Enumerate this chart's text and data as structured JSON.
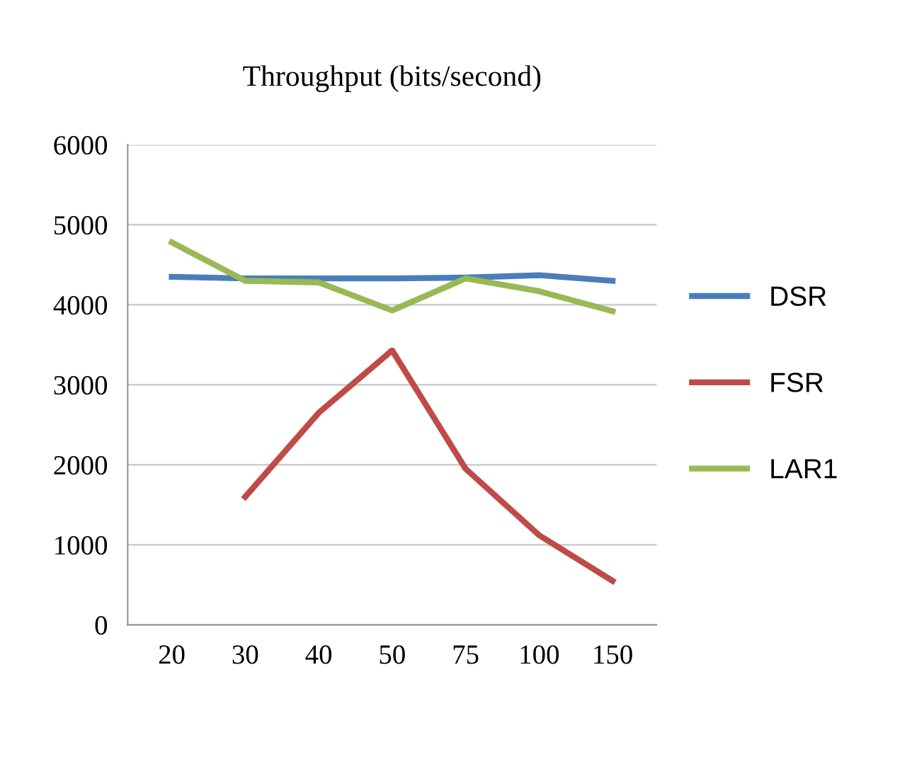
{
  "chart_data": {
    "type": "line",
    "title": "Throughput (bits/second)",
    "categories": [
      "20",
      "30",
      "40",
      "50",
      "75",
      "100",
      "150"
    ],
    "series": [
      {
        "name": "DSR",
        "color": "#4a7ebb",
        "values": [
          4350,
          4330,
          4330,
          4330,
          4340,
          4370,
          4300
        ]
      },
      {
        "name": "FSR",
        "color": "#be4b48",
        "values": [
          null,
          1600,
          2650,
          3430,
          1950,
          1120,
          550
        ]
      },
      {
        "name": "LAR1",
        "color": "#98b954",
        "values": [
          4780,
          4300,
          4280,
          3930,
          4330,
          4170,
          3920
        ]
      }
    ],
    "ylim": [
      0,
      6000
    ],
    "yticks": [
      0,
      1000,
      2000,
      3000,
      4000,
      5000,
      6000
    ],
    "grid": "y",
    "legend": "right",
    "marker": "none",
    "line_style": "solid"
  }
}
